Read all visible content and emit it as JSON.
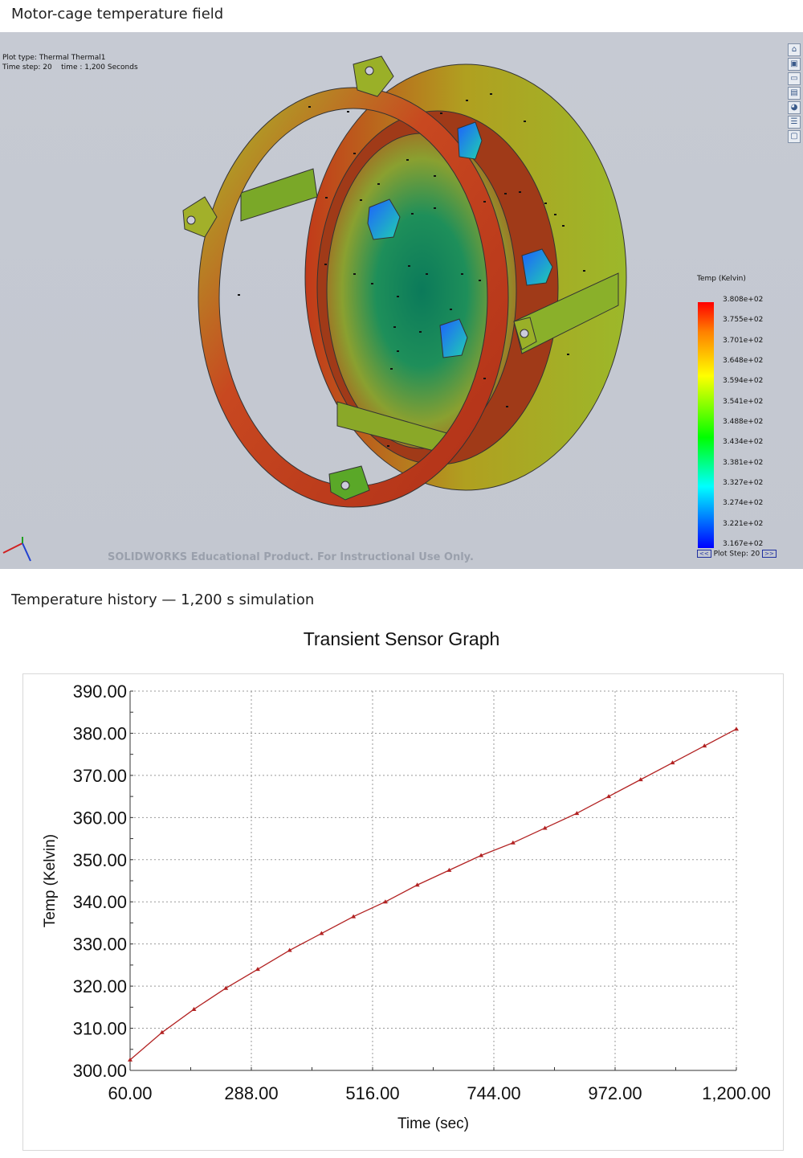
{
  "sections": {
    "model_title": "Motor-cage temperature field",
    "chart_title": "Temperature history — 1,200 s simulation"
  },
  "viewport": {
    "plot_type": "Plot type: Thermal Thermal1",
    "time_step": "Time step: 20    time : 1,200 Seconds",
    "watermark": "SOLIDWORKS Educational Product. For Instructional Use Only.",
    "legend": {
      "title": "Temp (Kelvin)",
      "labels": [
        "3.808e+02",
        "3.755e+02",
        "3.701e+02",
        "3.648e+02",
        "3.594e+02",
        "3.541e+02",
        "3.488e+02",
        "3.434e+02",
        "3.381e+02",
        "3.327e+02",
        "3.274e+02",
        "3.221e+02",
        "3.167e+02"
      ],
      "plot_step": "Plot Step: 20",
      "prev": "<<",
      "next": ">>"
    },
    "toolbar_icons": [
      "home-icon",
      "cube-icon",
      "folder-icon",
      "layout-icon",
      "color-wheel-icon",
      "list-icon",
      "display-icon"
    ]
  },
  "chart_data": {
    "type": "line",
    "title": "Transient Sensor Graph",
    "xlabel": "Time (sec)",
    "ylabel": "Temp (Kelvin)",
    "xlim": [
      60,
      1200
    ],
    "ylim": [
      300,
      390
    ],
    "xticks": [
      "60.00",
      "288.00",
      "516.00",
      "744.00",
      "972.00",
      "1,200.00"
    ],
    "yticks": [
      "300.00",
      "310.00",
      "320.00",
      "330.00",
      "340.00",
      "350.00",
      "360.00",
      "370.00",
      "380.00",
      "390.00"
    ],
    "grid": true,
    "line_color": "#b22222",
    "series": [
      {
        "x": [
          60,
          120,
          180,
          240,
          300,
          360,
          420,
          480,
          540,
          600,
          660,
          720,
          780,
          840,
          900,
          960,
          1020,
          1080,
          1140,
          1200
        ],
        "values": [
          302.5,
          309.0,
          314.5,
          319.5,
          324.0,
          328.5,
          332.5,
          336.5,
          340.0,
          344.0,
          347.5,
          351.0,
          354.0,
          357.5,
          361.0,
          365.0,
          369.0,
          373.0,
          377.0,
          381.0
        ]
      }
    ]
  }
}
